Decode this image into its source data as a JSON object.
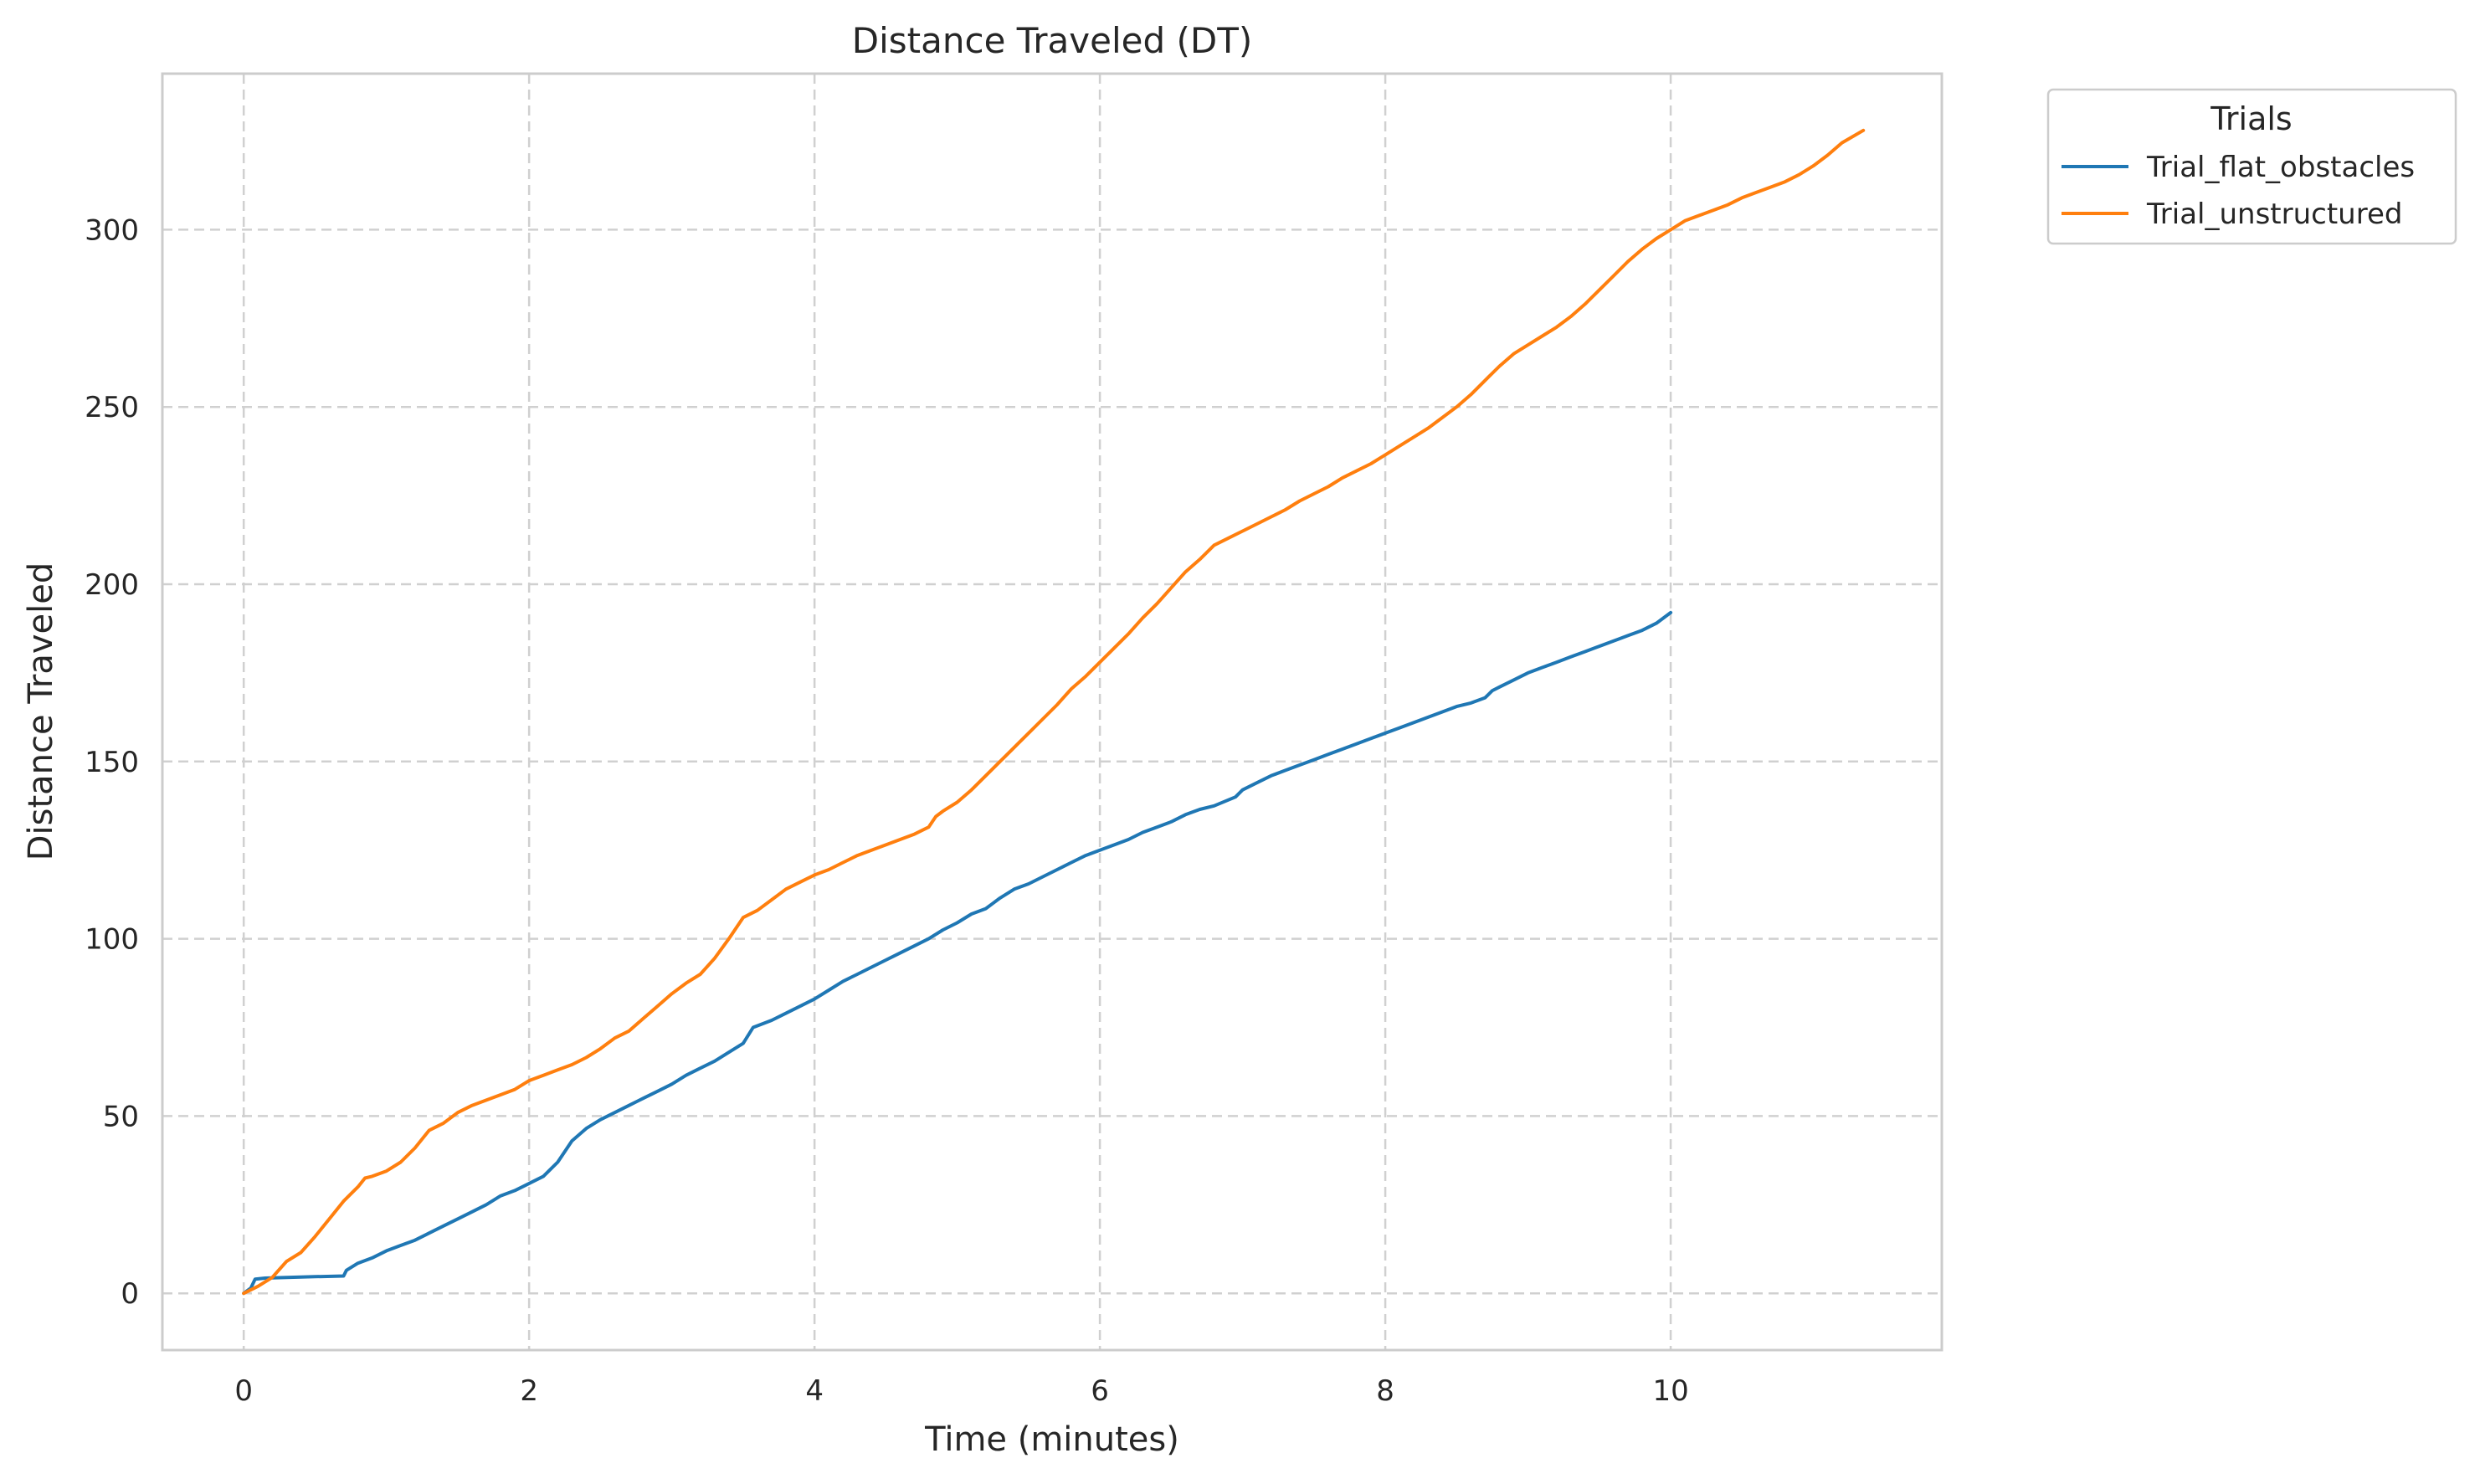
{
  "chart_data": {
    "type": "line",
    "title": "Distance Traveled (DT)",
    "xlabel": "Time (minutes)",
    "ylabel": "Distance Traveled",
    "xlim": [
      -0.57,
      11.9
    ],
    "ylim": [
      -16,
      344
    ],
    "xticks": [
      0,
      2,
      4,
      6,
      8,
      10
    ],
    "yticks": [
      0,
      50,
      100,
      150,
      200,
      250,
      300
    ],
    "grid": true,
    "legend": {
      "title": "Trials",
      "placement": "outside-top-right"
    },
    "series": [
      {
        "name": "Trial_flat_obstacles",
        "color": "#1f77b4",
        "points": [
          [
            0,
            0
          ],
          [
            0.05,
            1.5
          ],
          [
            0.08,
            4
          ],
          [
            0.15,
            4.3
          ],
          [
            0.3,
            4.5
          ],
          [
            0.5,
            4.7
          ],
          [
            0.7,
            4.9
          ],
          [
            0.72,
            6.5
          ],
          [
            0.8,
            8.5
          ],
          [
            0.9,
            10
          ],
          [
            1.0,
            12
          ],
          [
            1.1,
            13.5
          ],
          [
            1.2,
            15
          ],
          [
            1.3,
            17
          ],
          [
            1.4,
            19
          ],
          [
            1.5,
            21
          ],
          [
            1.6,
            23
          ],
          [
            1.7,
            25
          ],
          [
            1.8,
            27.5
          ],
          [
            1.9,
            29
          ],
          [
            2.0,
            31
          ],
          [
            2.1,
            33
          ],
          [
            2.2,
            37
          ],
          [
            2.3,
            43
          ],
          [
            2.4,
            46.5
          ],
          [
            2.5,
            49
          ],
          [
            2.6,
            51
          ],
          [
            2.7,
            53
          ],
          [
            2.8,
            55
          ],
          [
            2.9,
            57
          ],
          [
            3.0,
            59
          ],
          [
            3.1,
            61.5
          ],
          [
            3.2,
            63.5
          ],
          [
            3.3,
            65.5
          ],
          [
            3.4,
            68
          ],
          [
            3.5,
            70.5
          ],
          [
            3.57,
            75
          ],
          [
            3.7,
            77
          ],
          [
            3.8,
            79
          ],
          [
            3.9,
            81
          ],
          [
            4.0,
            83
          ],
          [
            4.1,
            85.5
          ],
          [
            4.2,
            88
          ],
          [
            4.3,
            90
          ],
          [
            4.4,
            92
          ],
          [
            4.5,
            94
          ],
          [
            4.6,
            96
          ],
          [
            4.7,
            98
          ],
          [
            4.8,
            100
          ],
          [
            4.9,
            102.5
          ],
          [
            5.0,
            104.5
          ],
          [
            5.1,
            107
          ],
          [
            5.2,
            108.5
          ],
          [
            5.25,
            110
          ],
          [
            5.3,
            111.5
          ],
          [
            5.4,
            114
          ],
          [
            5.5,
            115.5
          ],
          [
            5.6,
            117.5
          ],
          [
            5.7,
            119.5
          ],
          [
            5.8,
            121.5
          ],
          [
            5.9,
            123.5
          ],
          [
            6.0,
            125
          ],
          [
            6.1,
            126.5
          ],
          [
            6.2,
            128
          ],
          [
            6.3,
            130
          ],
          [
            6.4,
            131.5
          ],
          [
            6.5,
            133
          ],
          [
            6.6,
            135
          ],
          [
            6.7,
            136.5
          ],
          [
            6.8,
            137.5
          ],
          [
            6.95,
            140
          ],
          [
            7.0,
            142
          ],
          [
            7.1,
            144
          ],
          [
            7.2,
            146
          ],
          [
            7.3,
            147.5
          ],
          [
            7.4,
            149
          ],
          [
            7.5,
            150.5
          ],
          [
            7.6,
            152
          ],
          [
            7.7,
            153.5
          ],
          [
            7.8,
            155
          ],
          [
            7.9,
            156.5
          ],
          [
            8.0,
            158
          ],
          [
            8.1,
            159.5
          ],
          [
            8.2,
            161
          ],
          [
            8.3,
            162.5
          ],
          [
            8.4,
            164
          ],
          [
            8.5,
            165.5
          ],
          [
            8.6,
            166.5
          ],
          [
            8.7,
            168
          ],
          [
            8.75,
            170
          ],
          [
            8.8,
            171
          ],
          [
            8.9,
            173
          ],
          [
            9.0,
            175
          ],
          [
            9.1,
            176.5
          ],
          [
            9.2,
            178
          ],
          [
            9.3,
            179.5
          ],
          [
            9.4,
            181
          ],
          [
            9.5,
            182.5
          ],
          [
            9.6,
            184
          ],
          [
            9.7,
            185.5
          ],
          [
            9.8,
            187
          ],
          [
            9.9,
            189
          ],
          [
            10.0,
            192
          ]
        ]
      },
      {
        "name": "Trial_unstructured",
        "color": "#ff7f0e",
        "points": [
          [
            0,
            0
          ],
          [
            0.1,
            2
          ],
          [
            0.2,
            4.5
          ],
          [
            0.3,
            9
          ],
          [
            0.4,
            11.5
          ],
          [
            0.5,
            16
          ],
          [
            0.6,
            21
          ],
          [
            0.7,
            26
          ],
          [
            0.8,
            30
          ],
          [
            0.85,
            32.5
          ],
          [
            0.9,
            33
          ],
          [
            1.0,
            34.5
          ],
          [
            1.1,
            37
          ],
          [
            1.2,
            41
          ],
          [
            1.3,
            46
          ],
          [
            1.4,
            48
          ],
          [
            1.5,
            51
          ],
          [
            1.6,
            53
          ],
          [
            1.7,
            54.5
          ],
          [
            1.8,
            56
          ],
          [
            1.9,
            57.5
          ],
          [
            2.0,
            60
          ],
          [
            2.1,
            61.5
          ],
          [
            2.2,
            63
          ],
          [
            2.3,
            64.5
          ],
          [
            2.4,
            66.5
          ],
          [
            2.5,
            69
          ],
          [
            2.6,
            72
          ],
          [
            2.7,
            74
          ],
          [
            2.8,
            77.5
          ],
          [
            2.9,
            81
          ],
          [
            3.0,
            84.5
          ],
          [
            3.1,
            87.5
          ],
          [
            3.2,
            90
          ],
          [
            3.3,
            94.5
          ],
          [
            3.4,
            100
          ],
          [
            3.5,
            106
          ],
          [
            3.6,
            108
          ],
          [
            3.7,
            111
          ],
          [
            3.8,
            114
          ],
          [
            3.9,
            116
          ],
          [
            4.0,
            118
          ],
          [
            4.1,
            119.5
          ],
          [
            4.2,
            121.5
          ],
          [
            4.3,
            123.5
          ],
          [
            4.4,
            125
          ],
          [
            4.5,
            126.5
          ],
          [
            4.6,
            128
          ],
          [
            4.7,
            129.5
          ],
          [
            4.8,
            131.5
          ],
          [
            4.85,
            134.5
          ],
          [
            4.9,
            136
          ],
          [
            5.0,
            138.5
          ],
          [
            5.1,
            142
          ],
          [
            5.2,
            146
          ],
          [
            5.3,
            150
          ],
          [
            5.4,
            154
          ],
          [
            5.5,
            158
          ],
          [
            5.6,
            162
          ],
          [
            5.7,
            166
          ],
          [
            5.8,
            170.5
          ],
          [
            5.9,
            174
          ],
          [
            6.0,
            178
          ],
          [
            6.1,
            182
          ],
          [
            6.2,
            186
          ],
          [
            6.3,
            190.5
          ],
          [
            6.4,
            194.5
          ],
          [
            6.5,
            199
          ],
          [
            6.6,
            203.5
          ],
          [
            6.7,
            207
          ],
          [
            6.8,
            211
          ],
          [
            6.9,
            213
          ],
          [
            7.0,
            215
          ],
          [
            7.1,
            217
          ],
          [
            7.2,
            219
          ],
          [
            7.3,
            221
          ],
          [
            7.4,
            223.5
          ],
          [
            7.5,
            225.5
          ],
          [
            7.6,
            227.5
          ],
          [
            7.7,
            230
          ],
          [
            7.8,
            232
          ],
          [
            7.9,
            234
          ],
          [
            8.0,
            236.5
          ],
          [
            8.1,
            239
          ],
          [
            8.2,
            241.5
          ],
          [
            8.3,
            244
          ],
          [
            8.4,
            247
          ],
          [
            8.5,
            250
          ],
          [
            8.6,
            253.5
          ],
          [
            8.7,
            257.5
          ],
          [
            8.8,
            261.5
          ],
          [
            8.9,
            265
          ],
          [
            9.0,
            267.5
          ],
          [
            9.1,
            270
          ],
          [
            9.2,
            272.5
          ],
          [
            9.3,
            275.5
          ],
          [
            9.4,
            279
          ],
          [
            9.5,
            283
          ],
          [
            9.6,
            287
          ],
          [
            9.7,
            291
          ],
          [
            9.8,
            294.5
          ],
          [
            9.9,
            297.5
          ],
          [
            10.0,
            300
          ],
          [
            10.1,
            302.5
          ],
          [
            10.2,
            304
          ],
          [
            10.3,
            305.5
          ],
          [
            10.4,
            307
          ],
          [
            10.5,
            309
          ],
          [
            10.6,
            310.5
          ],
          [
            10.7,
            312
          ],
          [
            10.8,
            313.5
          ],
          [
            10.9,
            315.5
          ],
          [
            11.0,
            318
          ],
          [
            11.1,
            321
          ],
          [
            11.2,
            324.5
          ],
          [
            11.35,
            328
          ]
        ]
      }
    ]
  }
}
